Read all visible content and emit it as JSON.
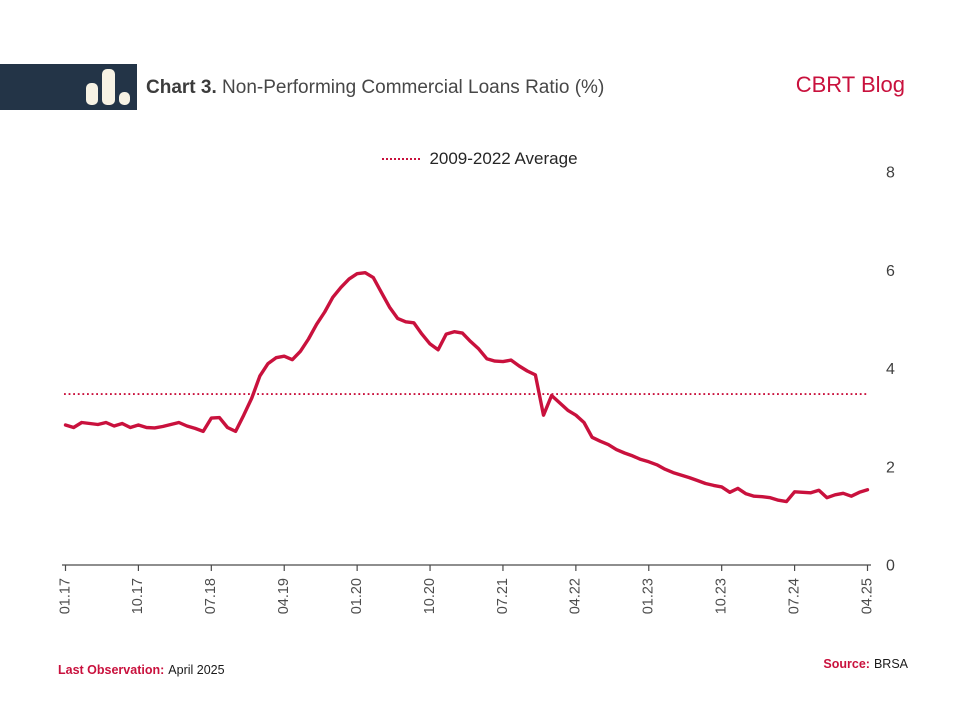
{
  "header": {
    "chart_label": "Chart 3.",
    "title": "Non-Performing Commercial Loans Ratio (%)",
    "brand": "CBRT Blog"
  },
  "legend": {
    "average_label": "2009-2022 Average"
  },
  "footer": {
    "last_observation_label": "Last Observation:",
    "last_observation_value": "April 2025",
    "source_label": "Source:",
    "source_value": "BRSA"
  },
  "colors": {
    "accent_crimson": "#C9113D",
    "logo_navy": "#233447",
    "logo_ivory": "#F7F2E4",
    "axis_text": "#4D4D4D",
    "title_text": "#474747"
  },
  "chart_data": {
    "type": "line",
    "title": "Non-Performing Commercial Loans Ratio (%)",
    "grid": false,
    "legend_position": "top-center",
    "ylim": [
      0,
      8
    ],
    "y_ticks": [
      0,
      2,
      4,
      6,
      8
    ],
    "x_tick_labels": [
      "01.17",
      "10.17",
      "07.18",
      "04.19",
      "01.20",
      "10.20",
      "07.21",
      "04.22",
      "01.23",
      "10.23",
      "07.24",
      "04.25"
    ],
    "x_tick_month_index": [
      0,
      9,
      18,
      27,
      36,
      45,
      54,
      63,
      72,
      81,
      90,
      99
    ],
    "average_line": {
      "label": "2009-2022 Average",
      "value": 3.48,
      "style": "dotted"
    },
    "series": [
      {
        "name": "Non-Performing Commercial Loans Ratio (%)",
        "start_month": "2017-01",
        "end_month": "2025-04",
        "monthly_values": [
          2.85,
          2.8,
          2.9,
          2.88,
          2.86,
          2.9,
          2.83,
          2.88,
          2.8,
          2.85,
          2.8,
          2.79,
          2.82,
          2.86,
          2.9,
          2.83,
          2.78,
          2.72,
          2.99,
          3.0,
          2.8,
          2.72,
          3.05,
          3.4,
          3.85,
          4.1,
          4.22,
          4.25,
          4.18,
          4.35,
          4.6,
          4.9,
          5.15,
          5.45,
          5.65,
          5.82,
          5.93,
          5.95,
          5.85,
          5.55,
          5.25,
          5.02,
          4.95,
          4.93,
          4.7,
          4.5,
          4.38,
          4.7,
          4.75,
          4.72,
          4.55,
          4.4,
          4.2,
          4.15,
          4.14,
          4.17,
          4.05,
          3.95,
          3.87,
          3.05,
          3.45,
          3.3,
          3.15,
          3.05,
          2.9,
          2.6,
          2.52,
          2.45,
          2.35,
          2.28,
          2.22,
          2.15,
          2.1,
          2.04,
          1.95,
          1.88,
          1.83,
          1.78,
          1.72,
          1.66,
          1.62,
          1.59,
          1.48,
          1.56,
          1.45,
          1.4,
          1.39,
          1.37,
          1.32,
          1.29,
          1.49,
          1.48,
          1.47,
          1.52,
          1.37,
          1.43,
          1.46,
          1.4,
          1.48,
          1.53
        ]
      }
    ]
  }
}
